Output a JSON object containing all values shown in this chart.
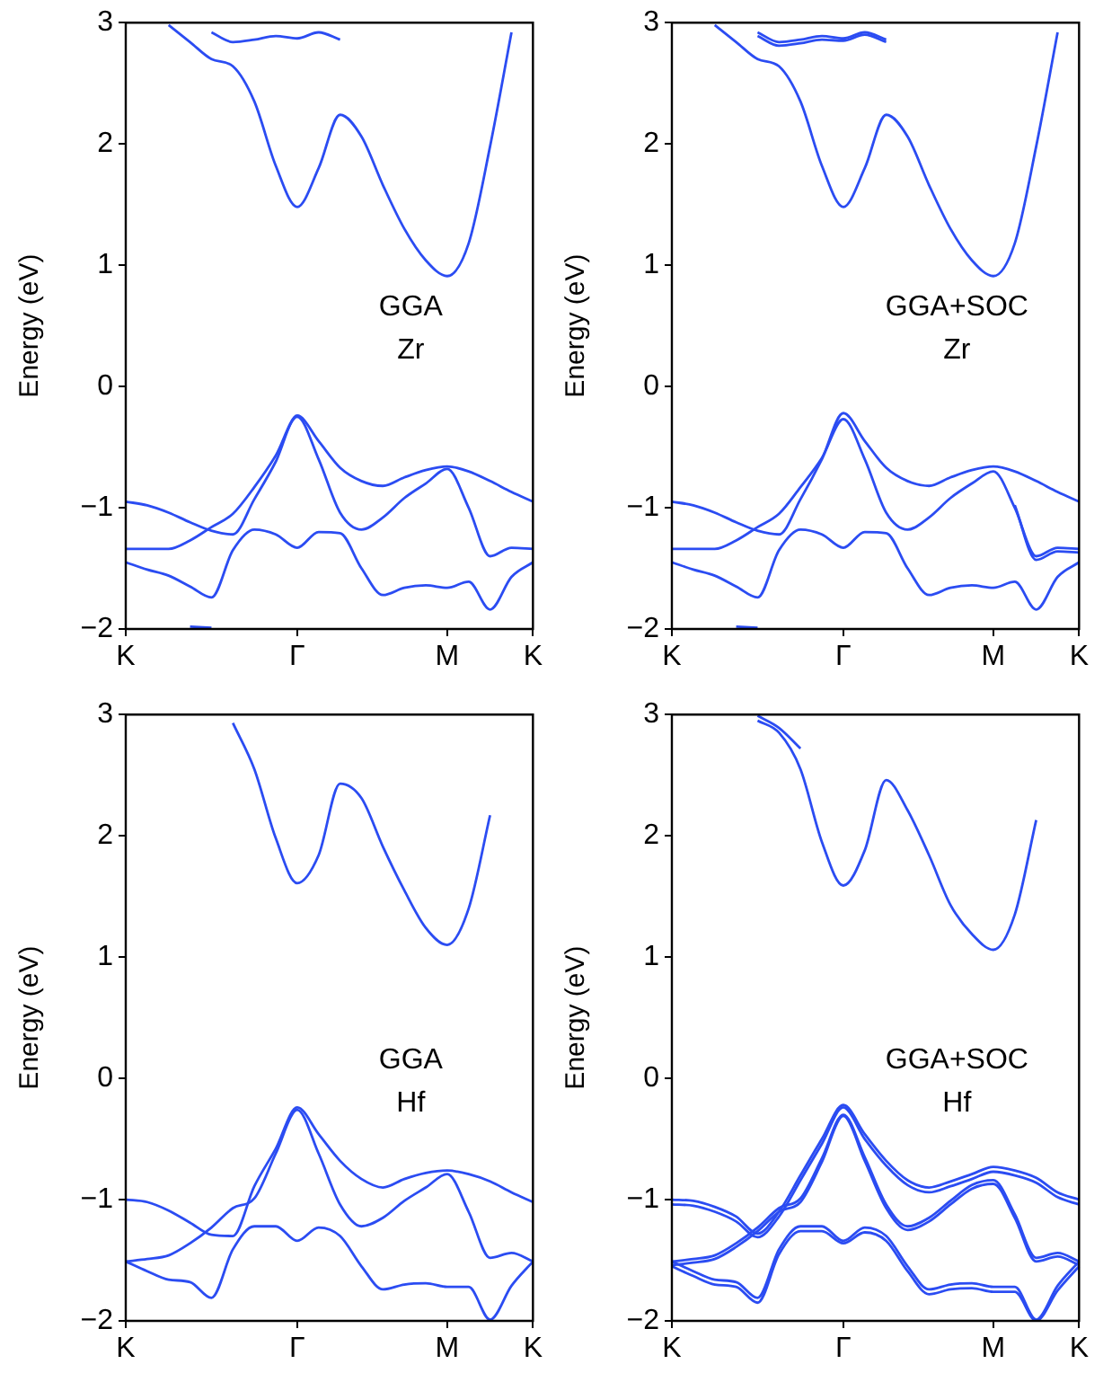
{
  "chart_data": [
    {
      "type": "line",
      "ylabel": "Energy (eV)",
      "annotations": [
        "GGA",
        "Zr"
      ],
      "categories": [
        "K",
        null,
        null,
        null,
        null,
        null,
        null,
        null,
        "Γ",
        null,
        null,
        null,
        null,
        null,
        null,
        "M",
        null,
        null,
        null,
        "K"
      ],
      "ylim": [
        -2,
        3
      ],
      "yticks": [
        -2,
        -1,
        0,
        1,
        2,
        3
      ],
      "marker": "none",
      "series": [
        {
          "color": "#2b4cf2",
          "values": [
            null,
            null,
            2.98,
            2.84,
            2.7,
            2.64,
            2.35,
            1.82,
            1.48,
            1.8,
            2.24,
            2.06,
            1.66,
            1.3,
            1.04,
            0.91,
            1.18,
            1.98,
            2.92,
            null
          ]
        },
        {
          "color": "#2b4cf2",
          "values": [
            null,
            null,
            null,
            null,
            2.92,
            2.84,
            2.86,
            2.89,
            2.87,
            2.92,
            2.86,
            null,
            null,
            null,
            null,
            null,
            null,
            null,
            null,
            null
          ]
        },
        {
          "color": "#2b4cf2",
          "values": [
            -0.95,
            -0.98,
            -1.04,
            -1.12,
            -1.19,
            -1.22,
            -0.93,
            -0.62,
            -0.24,
            -0.45,
            -0.67,
            -0.78,
            -0.82,
            -0.75,
            -0.69,
            -0.66,
            -0.7,
            -0.78,
            -0.87,
            -0.95
          ]
        },
        {
          "color": "#2b4cf2",
          "values": [
            -1.34,
            -1.34,
            -1.34,
            -1.27,
            -1.16,
            -1.05,
            -0.83,
            -0.57,
            -0.25,
            -0.6,
            -1.04,
            -1.18,
            -1.08,
            -0.92,
            -0.8,
            -0.68,
            -1.0,
            -1.4,
            -1.33,
            -1.34
          ]
        },
        {
          "color": "#2b4cf2",
          "values": [
            -1.45,
            -1.51,
            -1.56,
            -1.65,
            -1.74,
            -1.35,
            -1.18,
            -1.22,
            -1.33,
            -1.2,
            -1.21,
            -1.5,
            -1.72,
            -1.66,
            -1.64,
            -1.66,
            -1.61,
            -1.84,
            -1.57,
            -1.45
          ]
        },
        {
          "color": "#2b4cf2",
          "values": [
            null,
            null,
            null,
            -1.98,
            -1.99,
            null,
            null,
            null,
            null,
            null,
            null,
            null,
            null,
            null,
            null,
            null,
            null,
            null,
            null,
            null
          ]
        }
      ]
    },
    {
      "type": "line",
      "ylabel": "Energy (eV)",
      "annotations": [
        "GGA+SOC",
        "Zr"
      ],
      "categories": [
        "K",
        null,
        null,
        null,
        null,
        null,
        null,
        null,
        "Γ",
        null,
        null,
        null,
        null,
        null,
        null,
        "M",
        null,
        null,
        null,
        "K"
      ],
      "ylim": [
        -2,
        3
      ],
      "yticks": [
        -2,
        -1,
        0,
        1,
        2,
        3
      ],
      "marker": "none",
      "series": [
        {
          "color": "#2b4cf2",
          "values": [
            null,
            null,
            2.98,
            2.84,
            2.7,
            2.64,
            2.35,
            1.82,
            1.48,
            1.8,
            2.24,
            2.06,
            1.66,
            1.3,
            1.04,
            0.91,
            1.18,
            1.98,
            2.92,
            null
          ]
        },
        {
          "color": "#2b4cf2",
          "values": [
            null,
            null,
            null,
            null,
            2.92,
            2.84,
            2.86,
            2.89,
            2.87,
            2.92,
            2.86,
            null,
            null,
            null,
            null,
            null,
            null,
            null,
            null,
            null
          ]
        },
        {
          "color": "#2b4cf2",
          "values": [
            null,
            null,
            null,
            null,
            2.89,
            2.81,
            2.83,
            2.86,
            2.85,
            2.9,
            2.84,
            null,
            null,
            null,
            null,
            null,
            null,
            null,
            null,
            null
          ]
        },
        {
          "color": "#2b4cf2",
          "values": [
            -0.95,
            -0.98,
            -1.04,
            -1.12,
            -1.19,
            -1.22,
            -0.93,
            -0.6,
            -0.22,
            -0.45,
            -0.67,
            -0.78,
            -0.82,
            -0.75,
            -0.69,
            -0.66,
            -0.7,
            -0.78,
            -0.87,
            -0.95
          ]
        },
        {
          "color": "#2b4cf2",
          "values": [
            -1.34,
            -1.34,
            -1.34,
            -1.27,
            -1.16,
            -1.05,
            -0.83,
            -0.59,
            -0.27,
            -0.6,
            -1.04,
            -1.18,
            -1.08,
            -0.92,
            -0.8,
            -0.7,
            -1.0,
            -1.4,
            -1.33,
            -1.34
          ]
        },
        {
          "color": "#2b4cf2",
          "values": [
            null,
            null,
            null,
            null,
            null,
            null,
            null,
            null,
            null,
            null,
            null,
            null,
            null,
            null,
            null,
            null,
            -0.98,
            -1.43,
            -1.36,
            -1.37
          ]
        },
        {
          "color": "#2b4cf2",
          "values": [
            -1.45,
            -1.51,
            -1.56,
            -1.65,
            -1.74,
            -1.35,
            -1.18,
            -1.22,
            -1.33,
            -1.2,
            -1.21,
            -1.5,
            -1.72,
            -1.66,
            -1.64,
            -1.66,
            -1.61,
            -1.84,
            -1.57,
            -1.45
          ]
        },
        {
          "color": "#2b4cf2",
          "values": [
            null,
            null,
            null,
            -1.98,
            -1.99,
            null,
            null,
            null,
            null,
            null,
            null,
            null,
            null,
            null,
            null,
            null,
            null,
            null,
            null,
            null
          ]
        }
      ]
    },
    {
      "type": "line",
      "ylabel": "Energy (eV)",
      "annotations": [
        "GGA",
        "Hf"
      ],
      "categories": [
        "K",
        null,
        null,
        null,
        null,
        null,
        null,
        null,
        "Γ",
        null,
        null,
        null,
        null,
        null,
        null,
        "M",
        null,
        null,
        null,
        "K"
      ],
      "ylim": [
        -2,
        3
      ],
      "yticks": [
        -2,
        -1,
        0,
        1,
        2,
        3
      ],
      "marker": "none",
      "series": [
        {
          "color": "#2b4cf2",
          "values": [
            null,
            null,
            null,
            null,
            null,
            2.93,
            2.55,
            1.98,
            1.61,
            1.84,
            2.43,
            2.31,
            1.91,
            1.55,
            1.24,
            1.1,
            1.4,
            2.17,
            null,
            null
          ]
        },
        {
          "color": "#2b4cf2",
          "values": [
            -1.0,
            -1.02,
            -1.09,
            -1.19,
            -1.29,
            -1.3,
            -0.89,
            -0.58,
            -0.24,
            -0.46,
            -0.68,
            -0.83,
            -0.9,
            -0.83,
            -0.78,
            -0.76,
            -0.79,
            -0.85,
            -0.94,
            -1.02
          ]
        },
        {
          "color": "#2b4cf2",
          "values": [
            -1.51,
            -1.49,
            -1.46,
            -1.36,
            -1.23,
            -1.07,
            -0.99,
            -0.62,
            -0.26,
            -0.62,
            -1.04,
            -1.22,
            -1.15,
            -1.01,
            -0.9,
            -0.79,
            -1.1,
            -1.48,
            -1.44,
            -1.51
          ]
        },
        {
          "color": "#2b4cf2",
          "values": [
            -1.51,
            -1.59,
            -1.66,
            -1.68,
            -1.81,
            -1.41,
            -1.22,
            -1.22,
            -1.34,
            -1.23,
            -1.3,
            -1.55,
            -1.74,
            -1.7,
            -1.69,
            -1.72,
            -1.72,
            -1.99,
            -1.71,
            -1.51
          ]
        }
      ]
    },
    {
      "type": "line",
      "ylabel": "Energy (eV)",
      "annotations": [
        "GGA+SOC",
        "Hf"
      ],
      "categories": [
        "K",
        null,
        null,
        null,
        null,
        null,
        null,
        null,
        "Γ",
        null,
        null,
        null,
        null,
        null,
        null,
        "M",
        null,
        null,
        null,
        "K"
      ],
      "ylim": [
        -2,
        3
      ],
      "yticks": [
        -2,
        -1,
        0,
        1,
        2,
        3
      ],
      "marker": "none",
      "series": [
        {
          "color": "#2b4cf2",
          "values": [
            null,
            null,
            null,
            null,
            2.95,
            2.85,
            2.55,
            1.95,
            1.59,
            1.88,
            2.46,
            2.21,
            1.84,
            1.43,
            1.19,
            1.06,
            1.35,
            2.13,
            null,
            null
          ]
        },
        {
          "color": "#2b4cf2",
          "values": [
            null,
            null,
            null,
            null,
            2.99,
            2.89,
            2.72,
            null,
            null,
            null,
            null,
            null,
            null,
            null,
            null,
            null,
            null,
            null,
            null,
            null
          ]
        },
        {
          "color": "#2b4cf2",
          "values": [
            -1.0,
            -1.01,
            -1.06,
            -1.14,
            -1.28,
            -1.1,
            -0.8,
            -0.5,
            -0.22,
            -0.46,
            -0.68,
            -0.84,
            -0.9,
            -0.85,
            -0.79,
            -0.73,
            -0.76,
            -0.82,
            -0.94,
            -1.0
          ]
        },
        {
          "color": "#2b4cf2",
          "values": [
            -1.04,
            -1.05,
            -1.1,
            -1.18,
            -1.31,
            -1.14,
            -0.84,
            -0.54,
            -0.24,
            -0.5,
            -0.72,
            -0.88,
            -0.94,
            -0.89,
            -0.83,
            -0.77,
            -0.8,
            -0.86,
            -0.98,
            -1.04
          ]
        },
        {
          "color": "#2b4cf2",
          "values": [
            -1.51,
            -1.49,
            -1.46,
            -1.36,
            -1.23,
            -1.07,
            -0.99,
            -0.66,
            -0.3,
            -0.65,
            -1.04,
            -1.22,
            -1.15,
            -1.01,
            -0.88,
            -0.84,
            -1.12,
            -1.48,
            -1.44,
            -1.51
          ]
        },
        {
          "color": "#2b4cf2",
          "values": [
            -1.54,
            -1.52,
            -1.49,
            -1.39,
            -1.26,
            -1.1,
            -1.02,
            -0.69,
            -0.31,
            -0.68,
            -1.07,
            -1.25,
            -1.18,
            -1.04,
            -0.91,
            -0.87,
            -1.15,
            -1.51,
            -1.47,
            -1.54
          ]
        },
        {
          "color": "#2b4cf2",
          "values": [
            -1.51,
            -1.59,
            -1.66,
            -1.68,
            -1.81,
            -1.41,
            -1.22,
            -1.22,
            -1.34,
            -1.23,
            -1.3,
            -1.55,
            -1.74,
            -1.7,
            -1.69,
            -1.72,
            -1.72,
            -1.99,
            -1.71,
            -1.51
          ]
        },
        {
          "color": "#2b4cf2",
          "values": [
            -1.55,
            -1.63,
            -1.7,
            -1.72,
            -1.85,
            -1.45,
            -1.26,
            -1.26,
            -1.36,
            -1.27,
            -1.34,
            -1.59,
            -1.78,
            -1.74,
            -1.73,
            -1.76,
            -1.76,
            -2,
            -1.75,
            -1.55
          ]
        }
      ]
    }
  ]
}
